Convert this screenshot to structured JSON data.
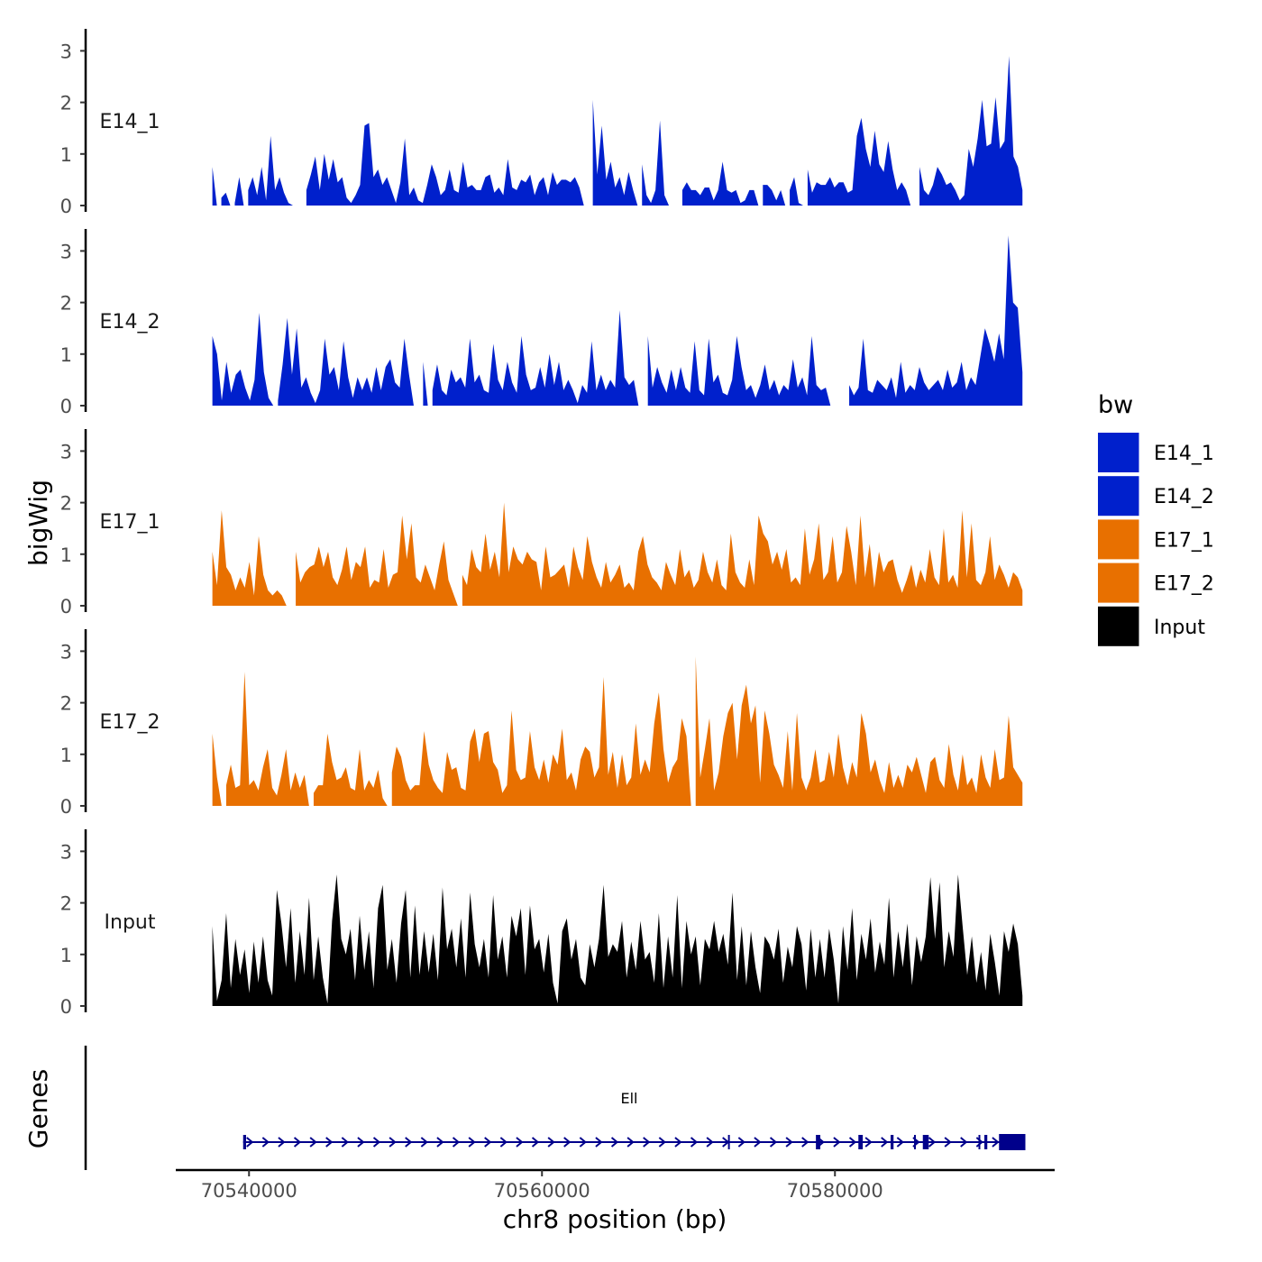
{
  "chart_data": {
    "type": "area",
    "genome_region": {
      "chromosome": "chr8",
      "start": 70537500,
      "end": 70592800
    },
    "x_axis": {
      "label": "chr8 position (bp)",
      "ticks": [
        70540000,
        70560000,
        70580000
      ],
      "tick_labels": [
        "70540000",
        "70560000",
        "70580000"
      ],
      "range": [
        70535000,
        70595000
      ]
    },
    "y_axis": {
      "label": "bigWig",
      "range": [
        0,
        3.4
      ],
      "ticks": [
        0,
        1,
        2,
        3
      ],
      "tick_labels": [
        "0",
        "1",
        "2",
        "3"
      ]
    },
    "tracks": [
      {
        "name": "E14_1",
        "color": "#0020CC",
        "values": [
          0.75,
          0,
          0.15,
          0.25,
          0,
          0.05,
          0.55,
          0,
          0.3,
          0.55,
          0.2,
          0.75,
          0.1,
          1.35,
          0.3,
          0.55,
          0.25,
          0.05,
          0,
          0,
          0,
          0.3,
          0.6,
          0.95,
          0.3,
          1.0,
          0.5,
          0.9,
          0.45,
          0.55,
          0.15,
          0.05,
          0.2,
          0.4,
          1.55,
          1.6,
          0.55,
          0.7,
          0.4,
          0.55,
          0.3,
          0.05,
          0.45,
          1.3,
          0.2,
          0.35,
          0.1,
          0.05,
          0.4,
          0.8,
          0.55,
          0.2,
          0.3,
          0.7,
          0.3,
          0.25,
          0.85,
          0.35,
          0.4,
          0.3,
          0.3,
          0.55,
          0.6,
          0.25,
          0.35,
          0.2,
          0.9,
          0.35,
          0.3,
          0.5,
          0.45,
          0.6,
          0.2,
          0.45,
          0.55,
          0.2,
          0.65,
          0.4,
          0.5,
          0.5,
          0.45,
          0.55,
          0.35,
          0,
          0,
          2.05,
          0.6,
          1.55,
          0.5,
          0.85,
          0.35,
          0.55,
          0.2,
          0.65,
          0.3,
          0,
          0.8,
          0.2,
          0.05,
          0.3,
          1.65,
          0.2,
          0,
          0,
          0,
          0.3,
          0.45,
          0.3,
          0.3,
          0.2,
          0.35,
          0.35,
          0.1,
          0.3,
          0.85,
          0.3,
          0.25,
          0.3,
          0.05,
          0.1,
          0.3,
          0.3,
          0,
          0.4,
          0.4,
          0.3,
          0.1,
          0.3,
          0,
          0.3,
          0.55,
          0.05,
          0,
          0.7,
          0.25,
          0.45,
          0.4,
          0.4,
          0.55,
          0.35,
          0.45,
          0.45,
          0.25,
          0.3,
          1.35,
          1.7,
          1.1,
          0.75,
          1.45,
          0.8,
          0.65,
          1.25,
          0.7,
          0.3,
          0.45,
          0.3,
          0,
          0,
          0.75,
          0.3,
          0.2,
          0.4,
          0.75,
          0.6,
          0.4,
          0.45,
          0.3,
          0.1,
          0.2,
          1.1,
          0.75,
          1.3,
          2.05,
          1.15,
          1.2,
          2.1,
          1.1,
          1.25,
          2.9,
          0.95,
          0.75,
          0.3
        ]
      },
      {
        "name": "E14_2",
        "color": "#0020CC",
        "values": [
          1.35,
          1.0,
          0.1,
          0.85,
          0.25,
          0.6,
          0.7,
          0.35,
          0.1,
          0.5,
          1.8,
          0.65,
          0.15,
          0,
          0.1,
          0.8,
          1.7,
          0.6,
          1.5,
          0.35,
          0.55,
          0.25,
          0.05,
          0.3,
          1.3,
          0.6,
          0.75,
          0.3,
          1.25,
          0.55,
          0.15,
          0.55,
          0.3,
          0.55,
          0.25,
          0.75,
          0.3,
          0.75,
          0.9,
          0.45,
          0.35,
          1.3,
          0.6,
          0,
          0,
          0.85,
          0,
          0.3,
          0.8,
          0.3,
          0.2,
          0.7,
          0.45,
          0.55,
          0.35,
          1.3,
          0.45,
          0.6,
          0.3,
          0.25,
          1.2,
          0.5,
          0.3,
          0.85,
          0.45,
          0.25,
          1.35,
          0.6,
          0.3,
          0.35,
          0.75,
          0.35,
          1.0,
          0.4,
          0.85,
          0.3,
          0.5,
          0.3,
          0.05,
          0.4,
          0.25,
          1.25,
          0.3,
          0.6,
          0.3,
          0.5,
          0.35,
          1.85,
          0.55,
          0.4,
          0.5,
          0,
          0,
          1.35,
          0.35,
          0.75,
          0.45,
          0.25,
          0.7,
          0.3,
          0.75,
          0.35,
          0.25,
          1.25,
          0.3,
          0.2,
          1.3,
          0.45,
          0.6,
          0.25,
          0.2,
          0.5,
          1.35,
          0.75,
          0.3,
          0.4,
          0.15,
          0.4,
          0.8,
          0.3,
          0.5,
          0.2,
          0.4,
          0.3,
          0.9,
          0.35,
          0.55,
          0.2,
          1.35,
          0.4,
          0.3,
          0.35,
          0,
          0,
          0,
          0,
          0.4,
          0.2,
          0.35,
          1.3,
          0.3,
          0.25,
          0.5,
          0.4,
          0.3,
          0.55,
          0.15,
          0.85,
          0.25,
          0.4,
          0.3,
          0.75,
          0.45,
          0.3,
          0.4,
          0.5,
          0.3,
          0.7,
          0.35,
          0.45,
          0.85,
          0.3,
          0.55,
          0.4,
          0.95,
          1.5,
          1.2,
          0.85,
          1.4,
          0.9,
          3.3,
          2.0,
          1.9,
          0.65
        ]
      },
      {
        "name": "E17_1",
        "color": "#E87000",
        "values": [
          1.05,
          0.4,
          1.85,
          0.75,
          0.6,
          0.3,
          0.55,
          0.35,
          0.85,
          0.2,
          1.35,
          0.6,
          0.3,
          0.2,
          0.3,
          0.2,
          0,
          0,
          1.05,
          0.45,
          0.65,
          0.75,
          0.8,
          1.15,
          0.75,
          1.05,
          0.55,
          0.4,
          0.7,
          1.15,
          0.5,
          0.85,
          0.75,
          1.15,
          0.35,
          0.5,
          0.45,
          1.1,
          0.35,
          0.6,
          0.65,
          1.75,
          0.9,
          1.6,
          0.55,
          0.45,
          0.8,
          0.55,
          0.3,
          0.8,
          1.25,
          0.5,
          0.25,
          0,
          0.6,
          0.4,
          1.1,
          0.75,
          0.65,
          1.4,
          0.7,
          1.05,
          0.55,
          2.0,
          0.65,
          1.15,
          0.9,
          0.8,
          1.05,
          0.9,
          0.85,
          0.3,
          1.15,
          0.55,
          0.6,
          0.7,
          0.8,
          0.35,
          1.15,
          0.75,
          0.5,
          1.35,
          0.85,
          0.55,
          0.35,
          0.85,
          0.45,
          0.6,
          0.8,
          0.35,
          0.45,
          0.3,
          1.05,
          1.35,
          0.8,
          0.55,
          0.45,
          0.3,
          0.85,
          0.6,
          0.4,
          1.1,
          0.55,
          0.7,
          0.35,
          0.5,
          1.05,
          0.65,
          0.45,
          0.9,
          0.4,
          0.3,
          1.4,
          0.65,
          0.45,
          0.35,
          0.9,
          0.4,
          1.75,
          1.4,
          1.25,
          0.8,
          1.05,
          0.7,
          1.1,
          0.45,
          0.55,
          0.4,
          1.5,
          0.6,
          0.9,
          1.6,
          0.5,
          0.65,
          1.35,
          0.45,
          0.65,
          1.55,
          1.05,
          0.4,
          1.75,
          0.55,
          1.2,
          0.35,
          1.05,
          0.65,
          0.85,
          0.9,
          0.5,
          0.25,
          0.5,
          0.8,
          0.35,
          0.7,
          0.45,
          1.1,
          0.55,
          0.4,
          1.5,
          0.45,
          0.6,
          0.35,
          1.85,
          0.55,
          1.6,
          0.5,
          0.4,
          0.65,
          1.35,
          0.5,
          0.8,
          0.6,
          0.35,
          0.65,
          0.55,
          0.3
        ]
      },
      {
        "name": "E17_2",
        "color": "#E87000",
        "values": [
          1.4,
          0.55,
          0,
          0.4,
          0.8,
          0.35,
          0.4,
          2.6,
          0.4,
          0.5,
          0.3,
          0.75,
          1.1,
          0.35,
          0.2,
          0.6,
          1.1,
          0.3,
          0.65,
          0.35,
          0.6,
          0,
          0.25,
          0.4,
          0.4,
          1.4,
          0.85,
          0.5,
          0.55,
          0.75,
          0.35,
          0.3,
          1.1,
          0.3,
          0.5,
          0.35,
          0.7,
          0.15,
          0,
          0.65,
          1.15,
          0.95,
          0.5,
          0.3,
          0.4,
          0.4,
          1.45,
          0.8,
          0.5,
          0.35,
          0.25,
          1.05,
          0.7,
          0.75,
          0.35,
          0.3,
          1.25,
          1.5,
          0.85,
          1.4,
          1.45,
          0.85,
          0.7,
          0.25,
          0.4,
          1.85,
          0.7,
          0.5,
          0.55,
          1.45,
          0.75,
          0.5,
          0.9,
          0.45,
          1.0,
          0.8,
          1.5,
          0.5,
          0.65,
          0.3,
          0.9,
          1.15,
          1.05,
          0.55,
          0.75,
          2.5,
          0.6,
          1.05,
          0.35,
          1.0,
          0.4,
          0.55,
          1.6,
          0.6,
          0.9,
          0.65,
          1.6,
          2.2,
          1.1,
          0.45,
          0.75,
          0.9,
          1.7,
          1.35,
          0,
          2.9,
          0.55,
          1.1,
          1.7,
          0.3,
          0.65,
          1.35,
          1.8,
          2.0,
          0.9,
          1.95,
          2.35,
          1.6,
          1.95,
          0.45,
          1.85,
          1.4,
          0.8,
          0.6,
          0.35,
          1.45,
          0.3,
          1.8,
          0.55,
          0.3,
          0.55,
          1.1,
          0.45,
          0.5,
          1.05,
          0.55,
          1.4,
          0.75,
          0.4,
          0.85,
          0.55,
          1.8,
          1.4,
          0.65,
          0.9,
          0.5,
          0.25,
          0.85,
          0.35,
          0.6,
          0.35,
          0.8,
          0.65,
          0.95,
          0.6,
          0.25,
          0.85,
          0.95,
          0.5,
          0.35,
          1.2,
          0.6,
          0.3,
          1.0,
          0.4,
          0.55,
          0.25,
          1.0,
          0.55,
          0.35,
          1.1,
          0.5,
          0.55,
          1.75,
          0.75,
          0.6,
          0.45
        ]
      },
      {
        "name": "Input",
        "color": "#000000",
        "values": [
          1.55,
          0.1,
          0.5,
          1.8,
          0.35,
          1.3,
          0.6,
          1.1,
          0.25,
          1.25,
          0.45,
          1.35,
          0.5,
          0.2,
          2.25,
          1.6,
          0.75,
          1.9,
          0.45,
          1.45,
          0.6,
          2.1,
          0.5,
          1.35,
          0.55,
          0.05,
          1.65,
          2.55,
          1.3,
          1.0,
          1.5,
          0.5,
          1.75,
          0.7,
          1.45,
          0.35,
          1.9,
          2.35,
          0.7,
          1.3,
          0.45,
          1.6,
          2.25,
          0.55,
          1.95,
          0.6,
          1.45,
          0.65,
          1.4,
          0.5,
          2.3,
          1.1,
          1.5,
          0.75,
          1.7,
          0.55,
          2.2,
          1.2,
          0.75,
          1.3,
          0.55,
          2.15,
          0.9,
          1.35,
          0.55,
          1.75,
          1.35,
          1.9,
          0.6,
          1.95,
          1.1,
          1.3,
          0.65,
          1.4,
          0.45,
          0.05,
          1.45,
          1.7,
          0.9,
          1.3,
          0.55,
          0.4,
          1.2,
          0.75,
          1.3,
          2.35,
          0.95,
          1.2,
          1.05,
          1.65,
          0.55,
          1.25,
          0.7,
          1.65,
          0.9,
          1.05,
          0.45,
          1.8,
          0.35,
          1.35,
          0.55,
          2.15,
          0.35,
          1.65,
          1.0,
          1.35,
          0.4,
          1.3,
          1.1,
          1.65,
          1.05,
          1.4,
          0.8,
          2.2,
          0.5,
          1.55,
          0.4,
          1.45,
          0.75,
          0.25,
          1.35,
          1.2,
          0.9,
          1.5,
          0.45,
          1.15,
          0.75,
          1.55,
          1.2,
          0.3,
          1.5,
          0.55,
          1.3,
          0.55,
          1.5,
          0.9,
          0.05,
          1.55,
          0.7,
          1.9,
          0.5,
          1.4,
          0.9,
          1.7,
          0.65,
          1.25,
          0.8,
          2.1,
          0.55,
          1.45,
          0.75,
          1.6,
          0.4,
          1.35,
          0.85,
          1.35,
          2.5,
          1.3,
          2.4,
          0.75,
          1.45,
          0.95,
          2.55,
          1.55,
          0.6,
          1.35,
          0.45,
          1.05,
          0.3,
          1.4,
          0.85,
          0.2,
          1.45,
          1.05,
          1.6,
          1.2,
          0.2
        ]
      }
    ],
    "genes_track": {
      "label": "Genes",
      "gene_name": "Ell",
      "color": "#00008B",
      "start": 70539600,
      "end": 70593000,
      "strand": "+",
      "exons": [
        [
          70539600,
          70539800
        ],
        [
          70572700,
          70572800
        ],
        [
          70578700,
          70579000
        ],
        [
          70581600,
          70581900
        ],
        [
          70583800,
          70584000
        ],
        [
          70585400,
          70585500
        ],
        [
          70586000,
          70586400
        ],
        [
          70589800,
          70589900
        ],
        [
          70590200,
          70590400
        ],
        [
          70591200,
          70593000
        ]
      ]
    },
    "legend": {
      "title": "bw",
      "placement": "right",
      "entries": [
        {
          "label": "E14_1",
          "color": "#0020CC"
        },
        {
          "label": "E14_2",
          "color": "#0020CC"
        },
        {
          "label": "E17_1",
          "color": "#E87000"
        },
        {
          "label": "E17_2",
          "color": "#E87000"
        },
        {
          "label": "Input",
          "color": "#000000"
        }
      ]
    }
  }
}
